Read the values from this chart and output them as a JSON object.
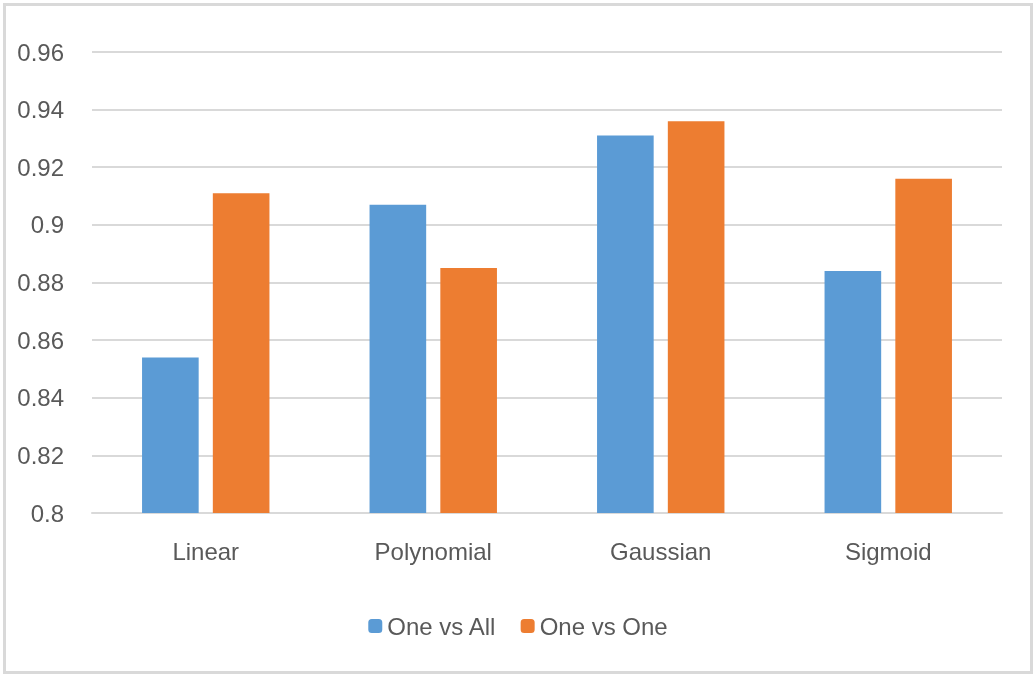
{
  "chart_data": {
    "type": "bar",
    "categories": [
      "Linear",
      "Polynomial",
      "Gaussian",
      "Sigmoid"
    ],
    "series": [
      {
        "name": "One vs All",
        "color": "#5b9bd5",
        "values": [
          0.854,
          0.907,
          0.931,
          0.884
        ]
      },
      {
        "name": "One vs One",
        "color": "#ed7d31",
        "values": [
          0.911,
          0.885,
          0.936,
          0.916
        ]
      }
    ],
    "ylim": [
      0.8,
      0.96
    ],
    "yticks": [
      0.8,
      0.82,
      0.84,
      0.86,
      0.88,
      0.9,
      0.92,
      0.94,
      0.96
    ],
    "grid": "y",
    "legend": "bottom"
  }
}
